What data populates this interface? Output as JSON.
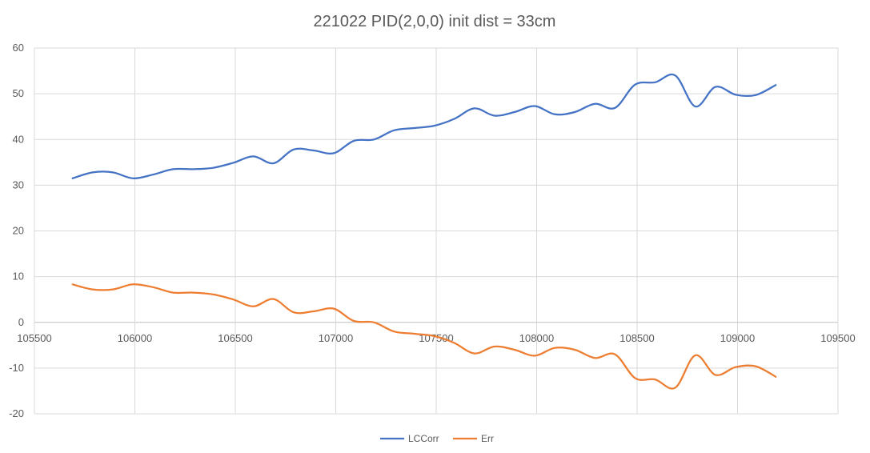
{
  "chart_data": {
    "type": "line",
    "title": "221022 PID(2,0,0) init dist = 33cm",
    "xlabel": "",
    "ylabel": "",
    "xlim": [
      105500,
      109500
    ],
    "ylim": [
      -20,
      60
    ],
    "x_ticks": [
      105500,
      106000,
      106500,
      107000,
      107500,
      108000,
      108500,
      109000,
      109500
    ],
    "y_ticks": [
      -20,
      -10,
      0,
      10,
      20,
      30,
      40,
      50,
      60
    ],
    "grid": true,
    "legend_position": "bottom",
    "series": [
      {
        "name": "LCCorr",
        "color": "#4472C4",
        "x": [
          105690,
          105790,
          105890,
          105990,
          106090,
          106190,
          106290,
          106390,
          106490,
          106590,
          106690,
          106790,
          106890,
          106990,
          107090,
          107190,
          107290,
          107390,
          107490,
          107590,
          107690,
          107790,
          107890,
          107990,
          108090,
          108190,
          108290,
          108390,
          108490,
          108590,
          108690,
          108790,
          108890,
          108990,
          109090,
          109190
        ],
        "y": [
          31.5,
          32.8,
          32.8,
          31.5,
          32.3,
          33.5,
          33.5,
          33.8,
          34.9,
          36.3,
          34.8,
          37.8,
          37.6,
          37.0,
          39.7,
          40.0,
          42.0,
          42.5,
          43.0,
          44.5,
          46.8,
          45.2,
          46.0,
          47.3,
          45.5,
          46.0,
          47.8,
          46.9,
          52.0,
          52.5,
          54.0,
          47.2,
          51.5,
          49.8,
          49.7,
          51.9
        ]
      },
      {
        "name": "Err",
        "color": "#ED7D31",
        "x": [
          105690,
          105790,
          105890,
          105990,
          106090,
          106190,
          106290,
          106390,
          106490,
          106590,
          106690,
          106790,
          106890,
          106990,
          107090,
          107190,
          107290,
          107390,
          107490,
          107590,
          107690,
          107790,
          107890,
          107990,
          108090,
          108190,
          108290,
          108390,
          108490,
          108590,
          108690,
          108790,
          108890,
          108990,
          109090,
          109190
        ],
        "y": [
          8.3,
          7.2,
          7.2,
          8.3,
          7.7,
          6.5,
          6.5,
          6.1,
          5.0,
          3.5,
          5.1,
          2.2,
          2.4,
          3.0,
          0.3,
          0.0,
          -2.0,
          -2.5,
          -3.0,
          -4.5,
          -6.8,
          -5.3,
          -6.0,
          -7.3,
          -5.6,
          -6.0,
          -7.8,
          -7.0,
          -12.2,
          -12.5,
          -14.3,
          -7.2,
          -11.5,
          -9.8,
          -9.6,
          -11.9
        ]
      }
    ]
  }
}
